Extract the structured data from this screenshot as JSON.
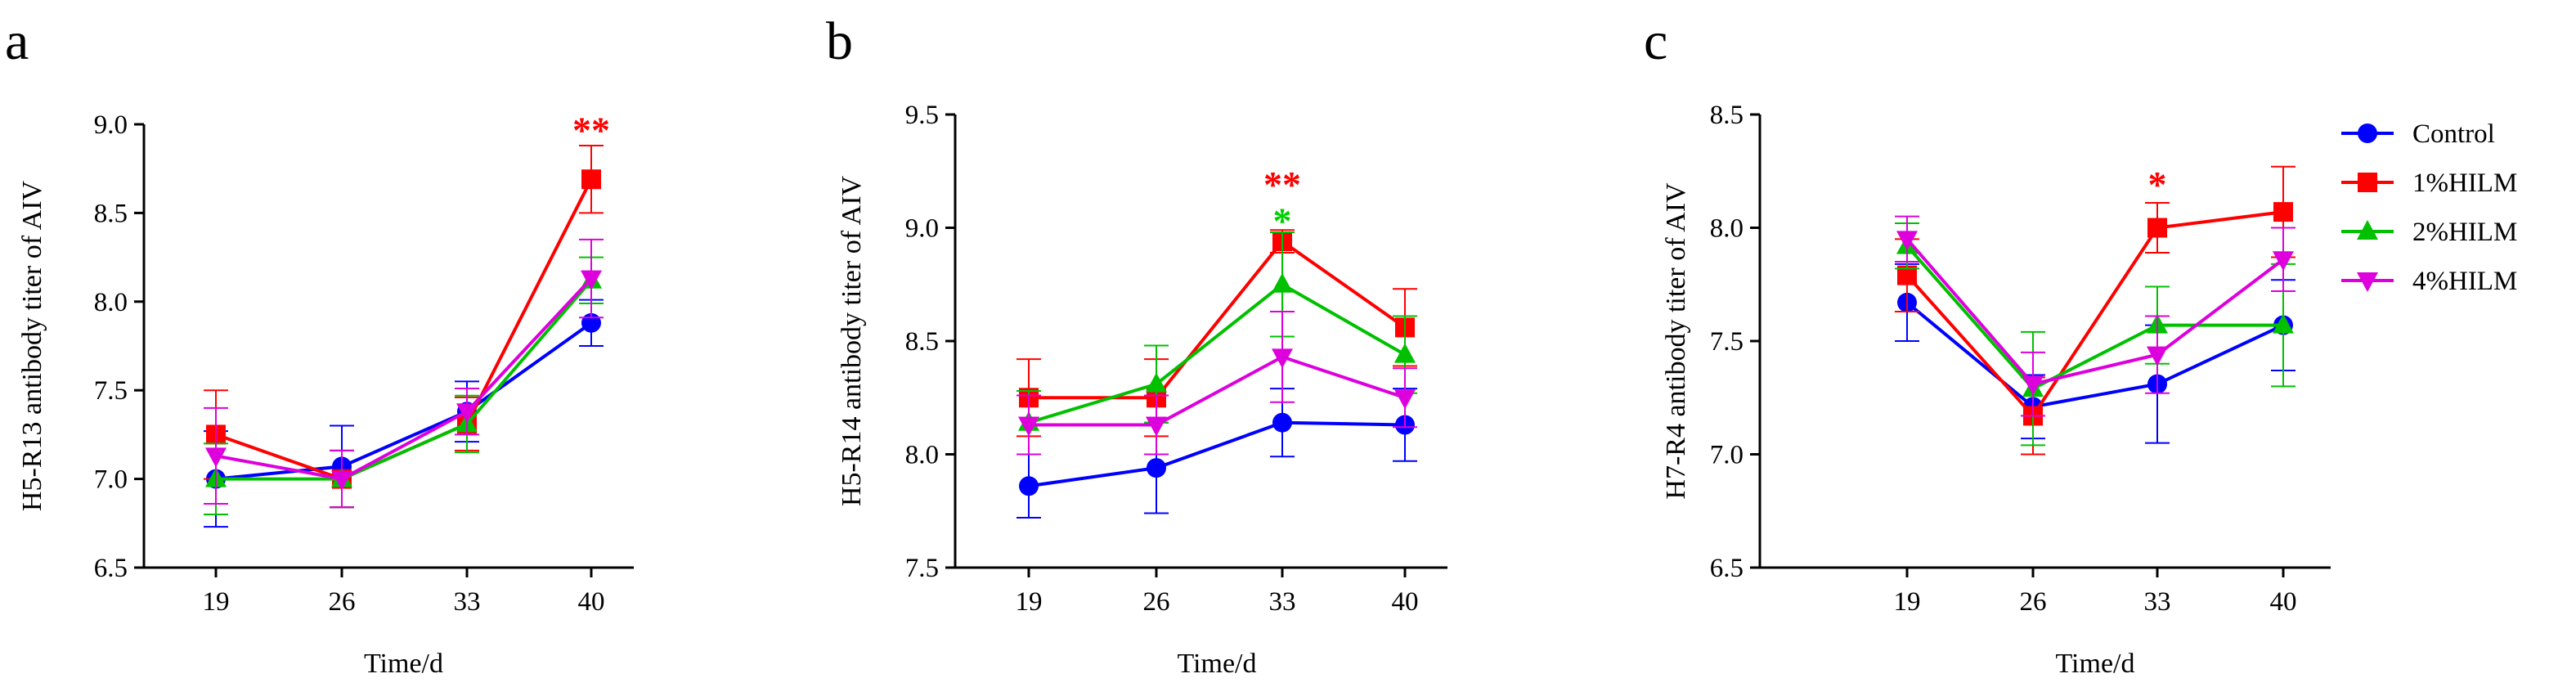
{
  "legend": [
    {
      "name": "Control",
      "color": "#0000ff",
      "marker": "circle"
    },
    {
      "name": "1%HILM",
      "color": "#ff0000",
      "marker": "square"
    },
    {
      "name": "2%HILM",
      "color": "#00c000",
      "marker": "triangle-up"
    },
    {
      "name": "4%HILM",
      "color": "#dd00dd",
      "marker": "triangle-down"
    }
  ],
  "chart_data": [
    {
      "panel": "a",
      "type": "line",
      "xlabel": "Time/d",
      "ylabel": "H5-R13 antibody titer of AIV",
      "ylim": [
        6.5,
        9.0
      ],
      "yticks": [
        "6.5",
        "7.0",
        "7.5",
        "8.0",
        "8.5",
        "9.0"
      ],
      "categories": [
        "19",
        "26",
        "33",
        "40"
      ],
      "series": [
        {
          "name": "Control",
          "values": [
            7.0,
            7.07,
            7.38,
            7.88
          ],
          "errors": [
            0.27,
            0.23,
            0.17,
            0.13
          ]
        },
        {
          "name": "1%HILM",
          "values": [
            7.25,
            7.0,
            7.31,
            8.69
          ],
          "errors": [
            0.25,
            0.16,
            0.15,
            0.19
          ]
        },
        {
          "name": "2%HILM",
          "values": [
            7.0,
            7.0,
            7.31,
            8.12
          ],
          "errors": [
            0.2,
            0.16,
            0.16,
            0.13
          ]
        },
        {
          "name": "4%HILM",
          "values": [
            7.13,
            7.0,
            7.38,
            8.13
          ],
          "errors": [
            0.27,
            0.16,
            0.13,
            0.22
          ]
        }
      ],
      "annotations": [
        {
          "category": "40",
          "text": "**",
          "color": "#ff0000",
          "value": 8.98
        }
      ]
    },
    {
      "panel": "b",
      "type": "line",
      "xlabel": "Time/d",
      "ylabel": "H5-R14 antibody titer of AIV",
      "ylim": [
        7.5,
        9.5
      ],
      "yticks": [
        "7.5",
        "8.0",
        "8.5",
        "9.0",
        "9.5"
      ],
      "categories": [
        "19",
        "26",
        "33",
        "40"
      ],
      "series": [
        {
          "name": "Control",
          "values": [
            7.86,
            7.94,
            8.14,
            8.13
          ],
          "errors": [
            0.14,
            0.2,
            0.15,
            0.16
          ]
        },
        {
          "name": "1%HILM",
          "values": [
            8.25,
            8.25,
            8.94,
            8.56
          ],
          "errors": [
            0.17,
            0.17,
            0.05,
            0.17
          ]
        },
        {
          "name": "2%HILM",
          "values": [
            8.14,
            8.31,
            8.75,
            8.44
          ],
          "errors": [
            0.14,
            0.17,
            0.23,
            0.17
          ]
        },
        {
          "name": "4%HILM",
          "values": [
            8.13,
            8.13,
            8.43,
            8.25
          ],
          "errors": [
            0.13,
            0.13,
            0.2,
            0.13
          ]
        }
      ],
      "annotations": [
        {
          "category": "33",
          "text": "**",
          "color": "#ff0000",
          "value": 9.2
        },
        {
          "category": "33",
          "text": "*",
          "color": "#00d000",
          "value": 9.04
        }
      ]
    },
    {
      "panel": "c",
      "type": "line",
      "xlabel": "Time/d",
      "ylabel": "H7-R4 antibody titer of AIV",
      "ylim": [
        6.5,
        8.5
      ],
      "yticks": [
        "6.5",
        "7.0",
        "7.5",
        "8.0",
        "8.5"
      ],
      "categories": [
        "19",
        "26",
        "33",
        "40"
      ],
      "series": [
        {
          "name": "Control",
          "values": [
            7.67,
            7.21,
            7.31,
            7.57
          ],
          "errors": [
            0.17,
            0.14,
            0.26,
            0.2
          ]
        },
        {
          "name": "1%HILM",
          "values": [
            7.79,
            7.17,
            8.0,
            8.07
          ],
          "errors": [
            0.16,
            0.17,
            0.11,
            0.2
          ]
        },
        {
          "name": "2%HILM",
          "values": [
            7.92,
            7.29,
            7.57,
            7.57
          ],
          "errors": [
            0.1,
            0.25,
            0.17,
            0.27
          ]
        },
        {
          "name": "4%HILM",
          "values": [
            7.95,
            7.31,
            7.44,
            7.86
          ],
          "errors": [
            0.1,
            0.14,
            0.17,
            0.14
          ]
        }
      ],
      "annotations": [
        {
          "category": "33",
          "text": "*",
          "color": "#ff0000",
          "value": 8.2
        }
      ]
    }
  ]
}
